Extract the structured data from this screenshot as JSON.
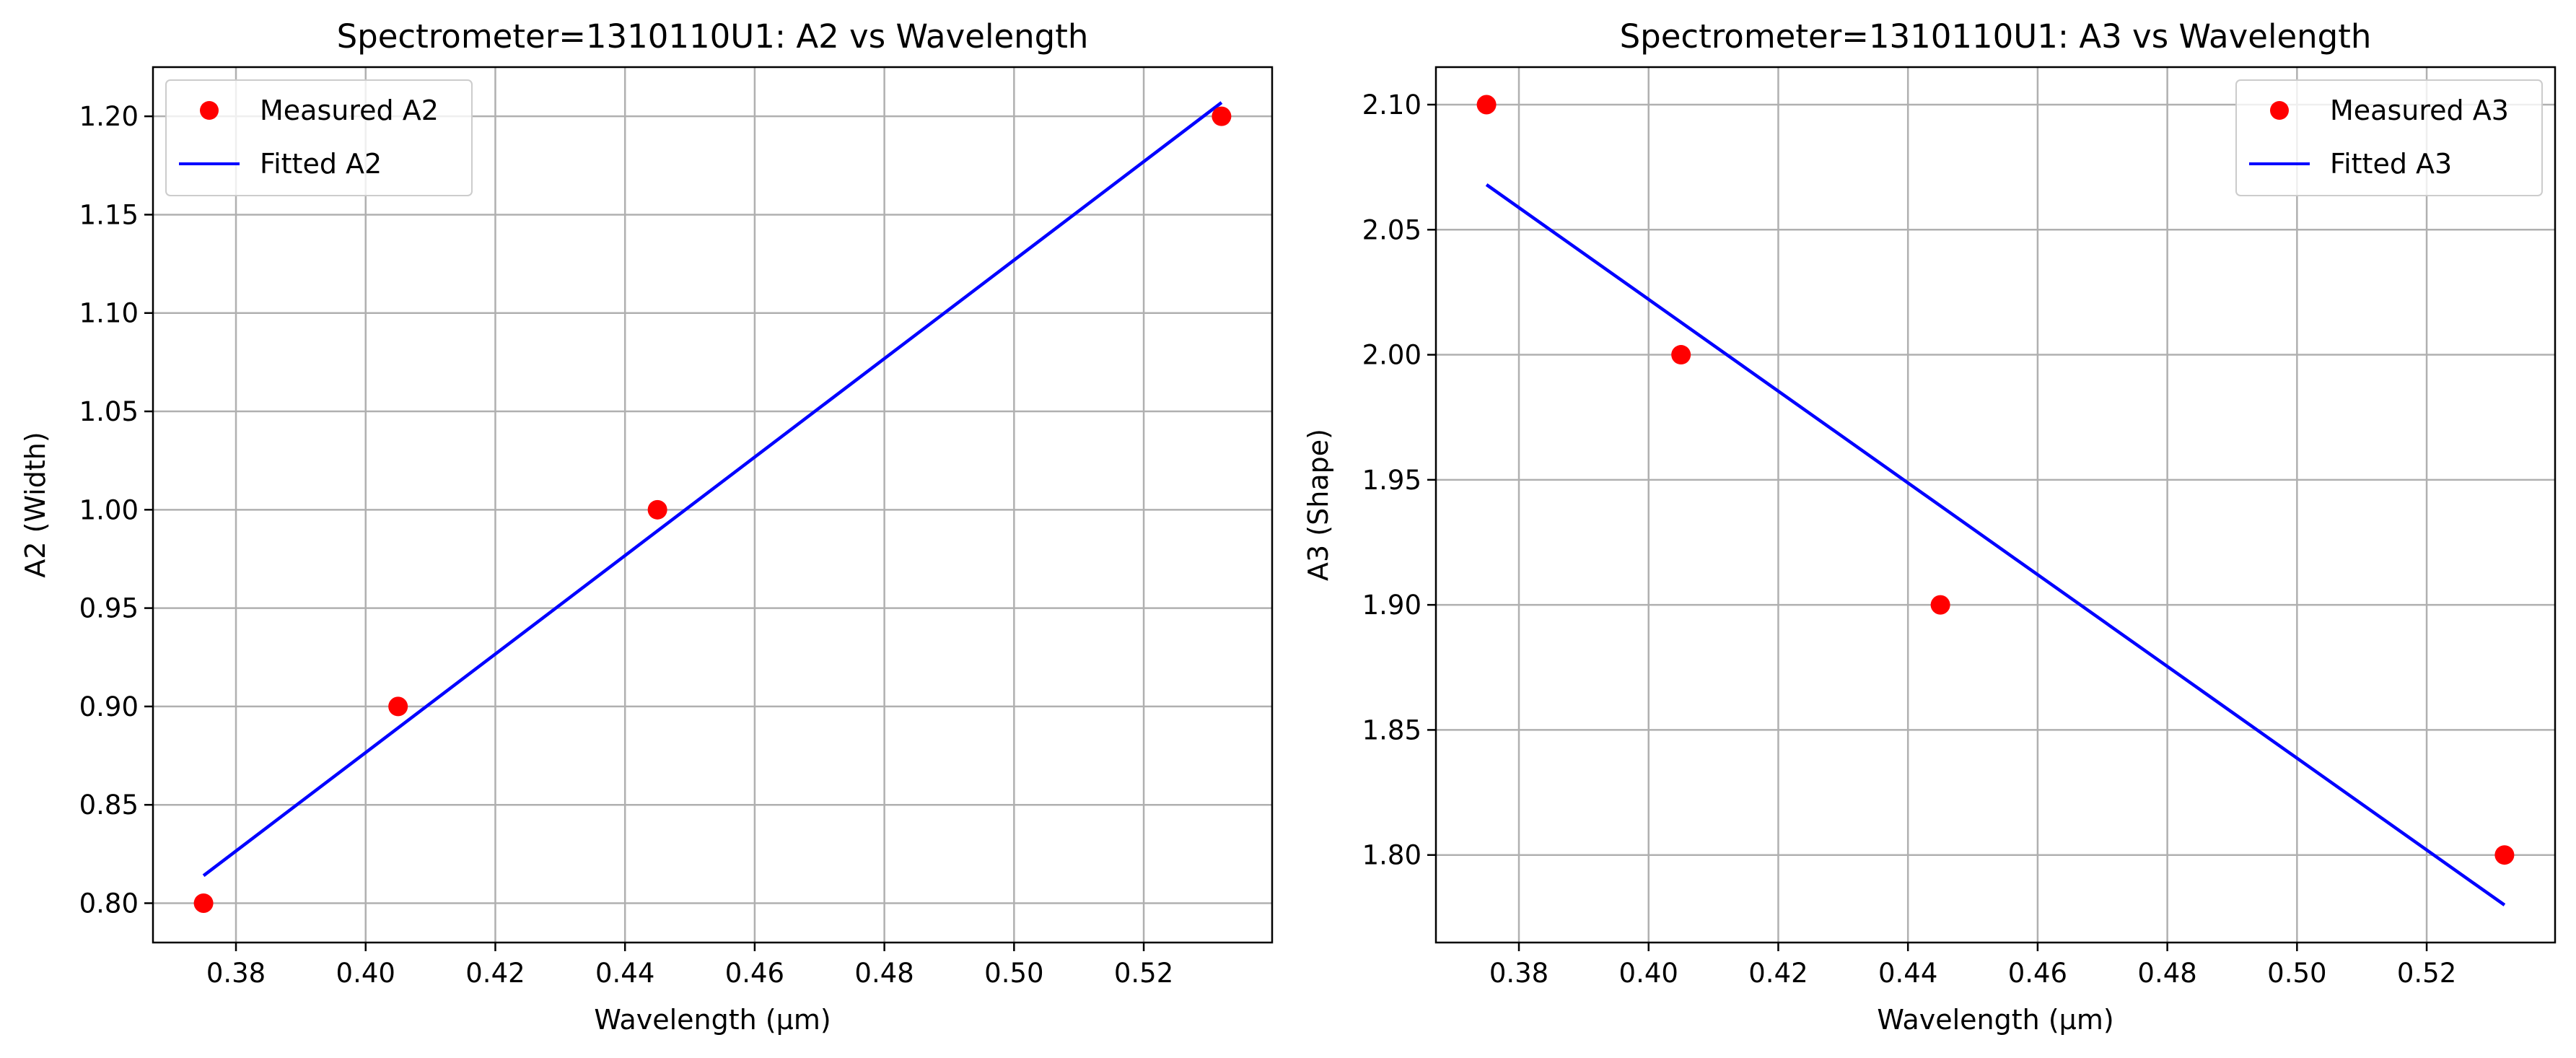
{
  "chart_data": [
    {
      "type": "scatter",
      "title": "Spectrometer=1310110U1: A2 vs Wavelength",
      "xlabel": "Wavelength (µm)",
      "ylabel": "A2 (Width)",
      "xlim": [
        0.3672,
        0.5398
      ],
      "ylim": [
        0.78,
        1.225
      ],
      "xticks": [
        "0.38",
        "0.40",
        "0.42",
        "0.44",
        "0.46",
        "0.48",
        "0.50",
        "0.52"
      ],
      "yticks": [
        "0.80",
        "0.85",
        "0.90",
        "0.95",
        "1.00",
        "1.05",
        "1.10",
        "1.15",
        "1.20"
      ],
      "grid": true,
      "legend_position": "top-left",
      "series": [
        {
          "name": "Measured A2",
          "kind": "markers",
          "color": "#ff0000",
          "x": [
            0.375,
            0.405,
            0.445,
            0.532
          ],
          "y": [
            0.8,
            0.9,
            1.0,
            1.2
          ]
        },
        {
          "name": "Fitted A2",
          "kind": "line",
          "color": "#0000ff",
          "x": [
            0.375,
            0.532
          ],
          "y": [
            0.814,
            1.207
          ]
        }
      ]
    },
    {
      "type": "scatter",
      "title": "Spectrometer=1310110U1: A3 vs Wavelength",
      "xlabel": "Wavelength (µm)",
      "ylabel": "A3 (Shape)",
      "xlim": [
        0.3672,
        0.5398
      ],
      "ylim": [
        1.765,
        2.115
      ],
      "xticks": [
        "0.38",
        "0.40",
        "0.42",
        "0.44",
        "0.46",
        "0.48",
        "0.50",
        "0.52"
      ],
      "yticks": [
        "1.80",
        "1.85",
        "1.90",
        "1.95",
        "2.00",
        "2.05",
        "2.10"
      ],
      "grid": true,
      "legend_position": "top-right",
      "series": [
        {
          "name": "Measured A3",
          "kind": "markers",
          "color": "#ff0000",
          "x": [
            0.375,
            0.405,
            0.445,
            0.532
          ],
          "y": [
            2.1,
            2.0,
            1.9,
            1.8
          ]
        },
        {
          "name": "Fitted A3",
          "kind": "line",
          "color": "#0000ff",
          "x": [
            0.375,
            0.532
          ],
          "y": [
            2.068,
            1.78
          ]
        }
      ]
    }
  ]
}
